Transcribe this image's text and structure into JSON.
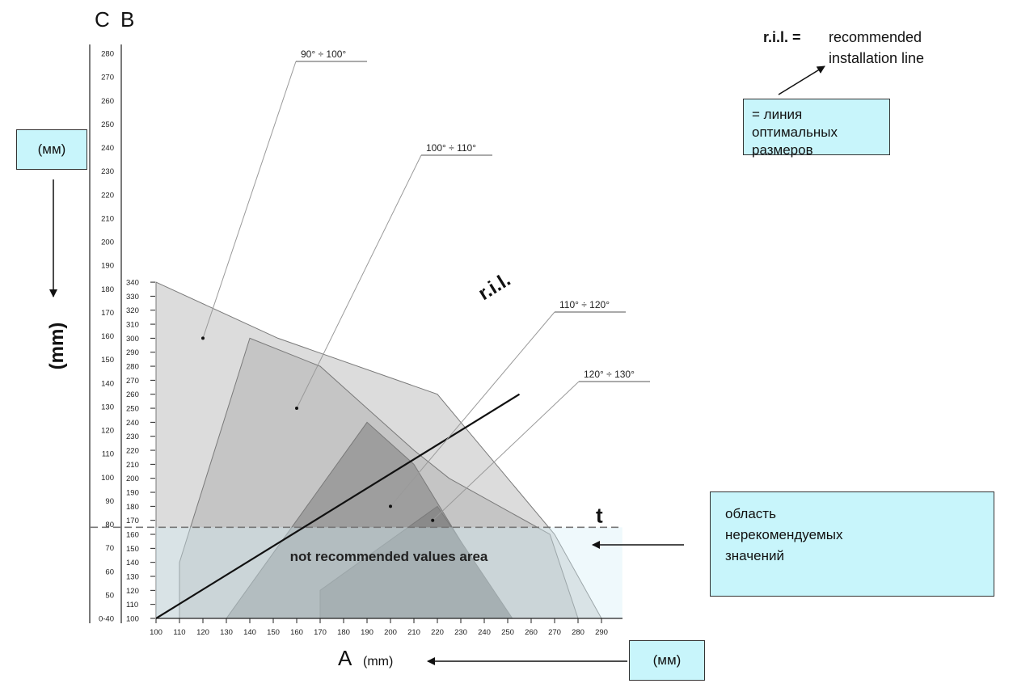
{
  "chart_data": {
    "type": "area",
    "title": "",
    "xlabel": "A",
    "xunit": "(mm)",
    "x_ticks": [
      100,
      110,
      120,
      130,
      140,
      150,
      160,
      170,
      180,
      190,
      200,
      210,
      220,
      230,
      240,
      250,
      260,
      270,
      280,
      290
    ],
    "xlim": [
      100,
      290
    ],
    "axis_b": {
      "label": "B",
      "ticks": [
        100,
        110,
        120,
        130,
        140,
        150,
        160,
        170,
        180,
        190,
        200,
        210,
        220,
        230,
        240,
        250,
        260,
        270,
        280,
        290,
        300,
        310,
        320,
        330,
        340
      ],
      "range": [
        100,
        340
      ]
    },
    "axis_c": {
      "label": "C",
      "tick_labels": [
        "0-40",
        "50",
        "60",
        "70",
        "80",
        "90",
        "100",
        "110",
        "120",
        "130",
        "140",
        "150",
        "160",
        "170",
        "180",
        "190",
        "200",
        "210",
        "220",
        "230",
        "240",
        "250",
        "260",
        "270",
        "280"
      ]
    },
    "vertical_unit": "(mm)",
    "series": [
      {
        "name": "90° ÷ 100°",
        "color": "#dcdcdc",
        "polygon": [
          [
            100,
            340
          ],
          [
            152,
            300
          ],
          [
            220,
            260
          ],
          [
            230,
            240
          ],
          [
            270,
            160
          ],
          [
            290,
            100
          ],
          [
            100,
            100
          ]
        ],
        "label_anchor": [
          120,
          300
        ]
      },
      {
        "name": "100° ÷ 110°",
        "color": "#c5c5c5",
        "polygon": [
          [
            140,
            300
          ],
          [
            170,
            280
          ],
          [
            190,
            250
          ],
          [
            210,
            220
          ],
          [
            225,
            200
          ],
          [
            268,
            160
          ],
          [
            280,
            100
          ],
          [
            110,
            100
          ],
          [
            110,
            140
          ]
        ],
        "label_anchor": [
          160,
          250
        ]
      },
      {
        "name": "110° ÷ 120°",
        "color": "#9e9e9e",
        "polygon": [
          [
            190,
            240
          ],
          [
            210,
            210
          ],
          [
            250,
            100
          ],
          [
            130,
            100
          ]
        ],
        "label_anchor": [
          200,
          180
        ]
      },
      {
        "name": "120° ÷ 130°",
        "color": "#8a8a8a",
        "polygon": [
          [
            220,
            180
          ],
          [
            252,
            100
          ],
          [
            170,
            100
          ],
          [
            170,
            120
          ]
        ],
        "label_anchor": [
          218,
          170
        ]
      }
    ],
    "ril_line": {
      "label": "r.i.l.",
      "from": [
        100,
        100
      ],
      "to": [
        255,
        260
      ]
    },
    "t_line": {
      "label": "t",
      "B_value": 165
    },
    "not_recommended_label": "not recommended values area",
    "legend_note": {
      "abbr": "r.i.l. =",
      "line1": "recommended",
      "line2": "installation line"
    }
  },
  "notes": {
    "ril_translation": [
      "= линия оптимальных",
      "размеров"
    ],
    "area_translation": [
      "область",
      "нерекомендуемых",
      "значений"
    ],
    "left_unit": "(мм)",
    "bottom_unit": "(мм)"
  }
}
